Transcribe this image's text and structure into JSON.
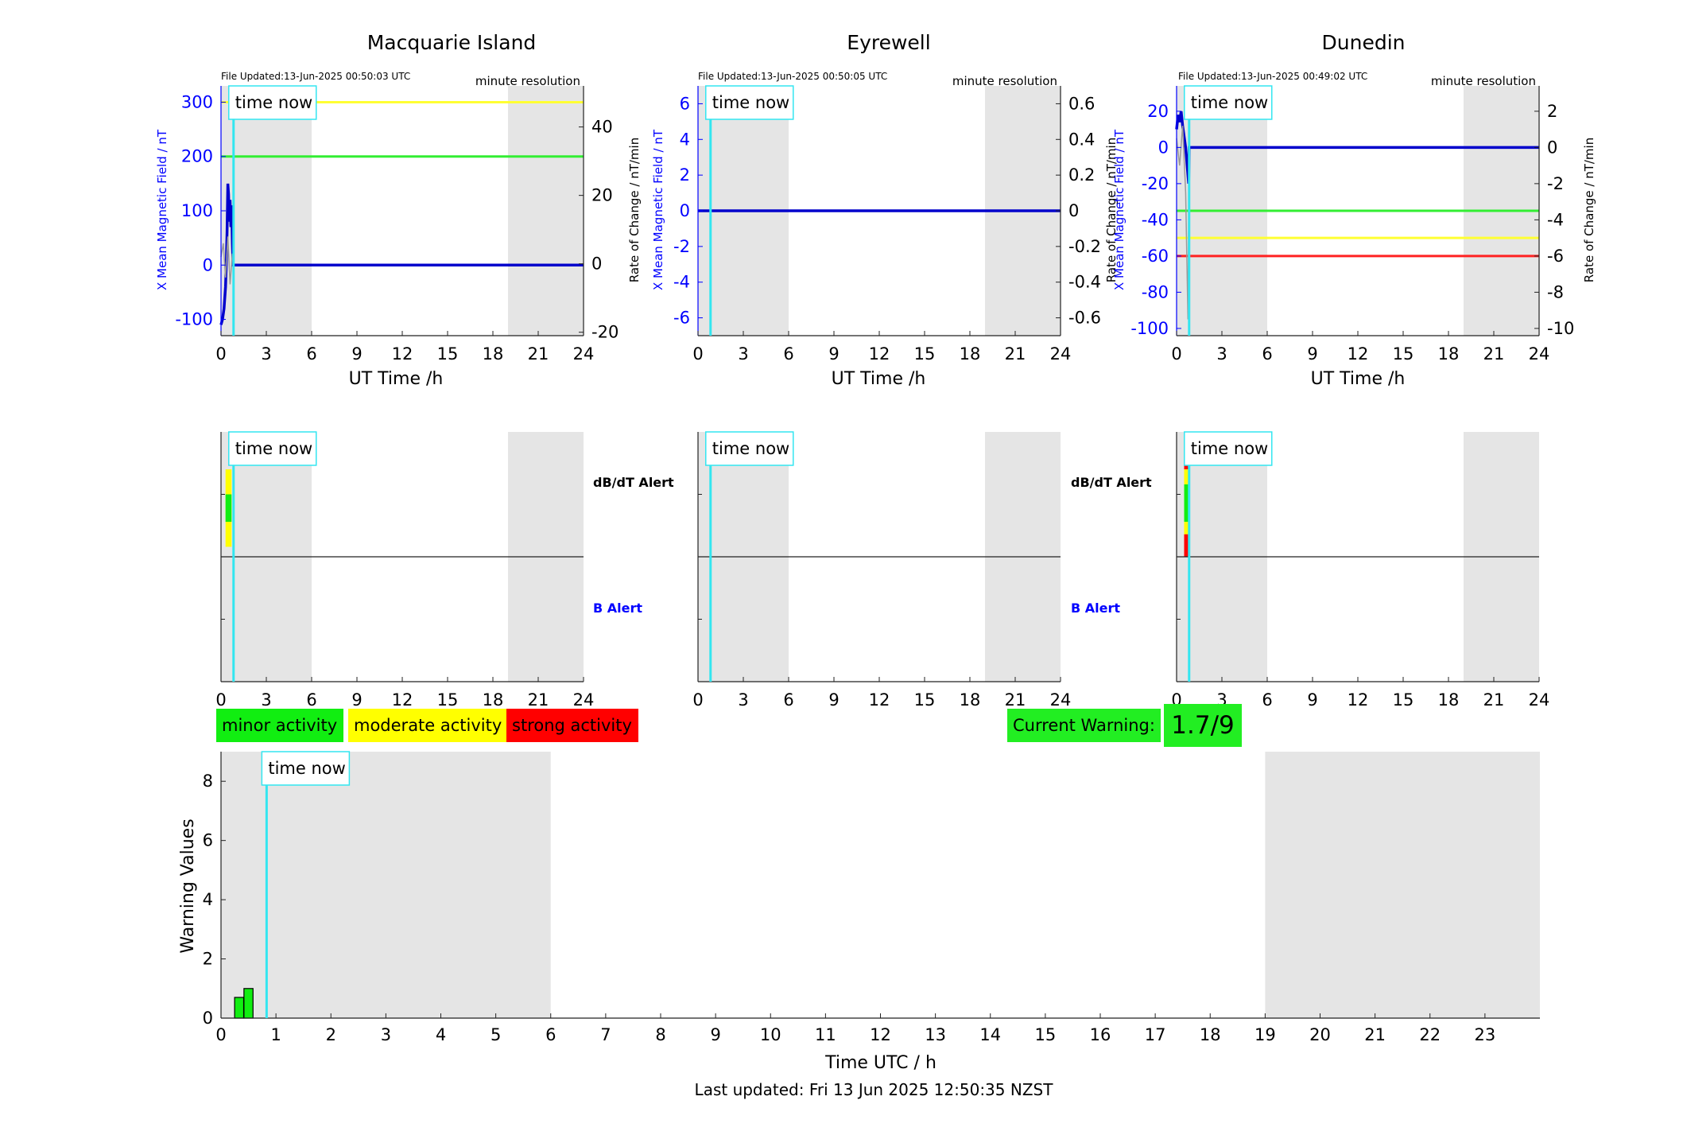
{
  "colors": {
    "field": "#0000ff",
    "field_line": "#0000cc",
    "rate": "#999999",
    "now_line": "#33e6f0",
    "shade": "#e5e5e5",
    "threshold_yellow": "#ffff33",
    "threshold_green": "#33ee33",
    "threshold_red": "#ff2222",
    "minor": "#11ee11",
    "moderate": "#ffff00",
    "strong": "#ff0000",
    "current_warning": "#22ee22"
  },
  "shaded_intervals_h": [
    [
      0,
      6
    ],
    [
      19,
      24
    ]
  ],
  "now_h": 0.83,
  "time_now_label": "time now",
  "chart_data": [
    {
      "type": "line",
      "title": "Macquarie Island",
      "file_updated": "File Updated:13-Jun-2025 00:50:03 UTC",
      "resolution": "minute resolution",
      "xlabel": "UT Time /h",
      "ylabel": "X Mean Magnetic Field / nT",
      "ylabel_right": "Rate of Change / nT/min",
      "xlim": [
        0,
        24
      ],
      "xticks": [
        0,
        3,
        6,
        9,
        12,
        15,
        18,
        21,
        24
      ],
      "ylim": [
        -130,
        330
      ],
      "yticks": [
        -100,
        0,
        100,
        200,
        300
      ],
      "ylim_right": [
        -21,
        52
      ],
      "yticks_right": [
        -20,
        0,
        20,
        40
      ],
      "thresholds": [
        {
          "value": 300,
          "color": "yellow"
        },
        {
          "value": 200,
          "color": "green"
        }
      ],
      "series": [
        {
          "role": "field",
          "x": [
            0,
            0.1,
            0.2,
            0.3,
            0.35,
            0.4,
            0.45,
            0.5,
            0.55,
            0.6,
            0.65,
            0.7,
            0.75,
            0.8,
            0.83,
            24
          ],
          "y": [
            -110,
            -100,
            -80,
            -40,
            0,
            60,
            150,
            130,
            80,
            120,
            70,
            110,
            40,
            0,
            0,
            0
          ]
        },
        {
          "role": "rate",
          "x": [
            0,
            0.15,
            0.3,
            0.45,
            0.6,
            0.75,
            0.83
          ],
          "y": [
            2,
            6,
            -4,
            8,
            -6,
            3,
            0
          ]
        }
      ]
    },
    {
      "type": "line",
      "title": "Eyrewell",
      "file_updated": "File Updated:13-Jun-2025 00:50:05 UTC",
      "resolution": "minute resolution",
      "xlabel": "UT Time /h",
      "ylabel": "X Mean Magnetic Field / nT",
      "ylabel_right": "Rate of Change / nT/min",
      "xlim": [
        0,
        24
      ],
      "xticks": [
        0,
        3,
        6,
        9,
        12,
        15,
        18,
        21,
        24
      ],
      "ylim": [
        -7,
        7
      ],
      "yticks": [
        -6,
        -4,
        -2,
        0,
        2,
        4,
        6
      ],
      "ylim_right": [
        -0.7,
        0.7
      ],
      "yticks_right": [
        -0.6,
        -0.4,
        -0.2,
        0,
        0.2,
        0.4,
        0.6
      ],
      "thresholds": [],
      "series": [
        {
          "role": "field",
          "x": [
            0,
            24
          ],
          "y": [
            0,
            0
          ]
        }
      ]
    },
    {
      "type": "line",
      "title": "Dunedin",
      "file_updated": "File Updated:13-Jun-2025 00:49:02 UTC",
      "resolution": "minute resolution",
      "xlabel": "UT Time /h",
      "ylabel": "X Mean Magnetic Field / nT",
      "ylabel_right": "Rate of Change / nT/min",
      "xlim": [
        0,
        24
      ],
      "xticks": [
        0,
        3,
        6,
        9,
        12,
        15,
        18,
        21,
        24
      ],
      "ylim": [
        -104,
        34
      ],
      "yticks": [
        -100,
        -80,
        -60,
        -40,
        -20,
        0,
        20
      ],
      "ylim_right": [
        -10.4,
        3.4
      ],
      "yticks_right": [
        -10,
        -8,
        -6,
        -4,
        -2,
        0,
        2
      ],
      "thresholds": [
        {
          "value": -35,
          "color": "green"
        },
        {
          "value": -50,
          "color": "yellow"
        },
        {
          "value": -60,
          "color": "red"
        }
      ],
      "series": [
        {
          "role": "field",
          "x": [
            0,
            0.1,
            0.2,
            0.3,
            0.4,
            0.5,
            0.6,
            0.7,
            0.8,
            0.83,
            24
          ],
          "y": [
            10,
            18,
            14,
            20,
            12,
            6,
            0,
            -10,
            -20,
            0,
            0
          ]
        },
        {
          "role": "rate",
          "x": [
            0,
            0.2,
            0.4,
            0.6,
            0.75,
            0.83
          ],
          "y": [
            0.5,
            -1,
            1.2,
            -2.5,
            -9.5,
            0
          ]
        }
      ]
    },
    {
      "type": "heatmap",
      "labels": [
        "dB/dT Alert",
        "B Alert"
      ],
      "xlim": [
        0,
        24
      ],
      "xticks": [
        0,
        3,
        6,
        9,
        12,
        15,
        18,
        21,
        24
      ],
      "blocks": [
        {
          "t": [
            0.3,
            0.7
          ],
          "level": [
            0.54,
            0.85
          ],
          "color": "moderate"
        },
        {
          "t": [
            0.3,
            0.7
          ],
          "level": [
            0.64,
            0.75
          ],
          "color": "minor"
        }
      ]
    },
    {
      "type": "heatmap",
      "labels": [
        "dB/dT Alert",
        "B Alert"
      ],
      "xlim": [
        0,
        24
      ],
      "xticks": [
        0,
        3,
        6,
        9,
        12,
        15,
        18,
        21,
        24
      ],
      "blocks": []
    },
    {
      "type": "heatmap",
      "labels": [
        "dB/dT Alert",
        "B Alert"
      ],
      "xlim": [
        0,
        24
      ],
      "xticks": [
        0,
        3,
        6,
        9,
        12,
        15,
        18,
        21,
        24
      ],
      "blocks": [
        {
          "t": [
            0.5,
            0.8
          ],
          "level": [
            0.85,
            0.92
          ],
          "color": "strong"
        },
        {
          "t": [
            0.5,
            0.8
          ],
          "level": [
            0.79,
            0.85
          ],
          "color": "moderate"
        },
        {
          "t": [
            0.5,
            0.8
          ],
          "level": [
            0.64,
            0.79
          ],
          "color": "minor"
        },
        {
          "t": [
            0.5,
            0.8
          ],
          "level": [
            0.59,
            0.64
          ],
          "color": "moderate"
        },
        {
          "t": [
            0.5,
            0.8
          ],
          "level": [
            0.5,
            0.59
          ],
          "color": "strong"
        }
      ]
    },
    {
      "type": "bar",
      "xlabel": "Time UTC / h",
      "ylabel": "Warning Values",
      "xlim": [
        0,
        24
      ],
      "xticks": [
        0,
        1,
        2,
        3,
        4,
        5,
        6,
        7,
        8,
        9,
        10,
        11,
        12,
        13,
        14,
        15,
        16,
        17,
        18,
        19,
        20,
        21,
        22,
        23
      ],
      "ylim": [
        0,
        9
      ],
      "yticks": [
        0,
        2,
        4,
        6,
        8
      ],
      "bars": [
        {
          "x": 0.33,
          "value": 0.7
        },
        {
          "x": 0.5,
          "value": 1.0
        }
      ],
      "bar_width_h": 0.165
    }
  ],
  "legend": {
    "minor": "minor activity",
    "moderate": "moderate activity",
    "strong": "strong activity"
  },
  "current_warning": {
    "label": "Current Warning:",
    "value": "1.7/9"
  },
  "footer": "Last updated: Fri 13 Jun 2025 12:50:35 NZST"
}
